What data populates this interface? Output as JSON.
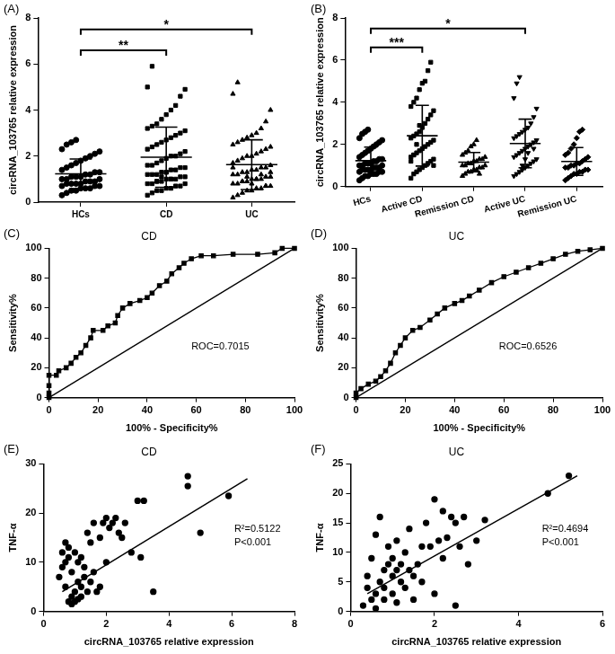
{
  "chart_data": [
    {
      "type": "dot_plot",
      "panel_label": "(A)",
      "y_label": "circRNA_103765 relative expression",
      "ylim": [
        0,
        8
      ],
      "yticks": [
        0,
        2,
        4,
        6,
        8
      ],
      "grid": false,
      "series": [
        {
          "name": "HCs",
          "color": "#000000",
          "marker": "circle",
          "values": [
            0.3,
            0.4,
            0.5,
            0.5,
            0.6,
            0.6,
            0.6,
            0.7,
            0.7,
            0.7,
            0.8,
            0.8,
            0.8,
            0.8,
            0.9,
            0.9,
            0.9,
            1.0,
            1.0,
            1.0,
            1.1,
            1.1,
            1.1,
            1.2,
            1.2,
            1.3,
            1.3,
            1.4,
            1.5,
            1.6,
            1.7,
            1.8,
            1.9,
            2.0,
            2.1,
            2.2,
            2.3,
            2.5,
            2.6,
            2.7
          ]
        },
        {
          "name": "CD",
          "color": "#000000",
          "marker": "square",
          "values": [
            0.3,
            0.4,
            0.5,
            0.5,
            0.6,
            0.6,
            0.7,
            0.7,
            0.8,
            0.8,
            0.8,
            0.9,
            0.9,
            1.0,
            1.0,
            1.0,
            1.1,
            1.1,
            1.2,
            1.2,
            1.2,
            1.3,
            1.3,
            1.4,
            1.4,
            1.5,
            1.5,
            1.6,
            1.6,
            1.7,
            1.8,
            1.9,
            2.0,
            2.0,
            2.1,
            2.2,
            2.3,
            2.4,
            2.5,
            2.6,
            2.7,
            2.8,
            2.9,
            3.0,
            3.1,
            3.2,
            3.3,
            3.4,
            3.6,
            3.8,
            4.0,
            4.2,
            4.6,
            4.9,
            5.0,
            5.9,
            0.9,
            1.1,
            1.3,
            1.0
          ]
        },
        {
          "name": "UC",
          "color": "#000000",
          "marker": "triangle",
          "values": [
            0.2,
            0.3,
            0.4,
            0.5,
            0.5,
            0.6,
            0.6,
            0.7,
            0.7,
            0.8,
            0.8,
            0.9,
            0.9,
            1.0,
            1.0,
            1.0,
            1.1,
            1.1,
            1.2,
            1.2,
            1.3,
            1.3,
            1.4,
            1.4,
            1.5,
            1.5,
            1.6,
            1.7,
            1.8,
            1.9,
            2.0,
            2.0,
            2.1,
            2.2,
            2.3,
            2.4,
            2.5,
            2.6,
            2.7,
            2.8,
            2.9,
            3.0,
            3.2,
            3.5,
            4.0,
            4.7,
            5.2,
            0.9,
            1.1,
            0.8,
            1.0,
            1.2,
            0.7,
            1.3,
            1.5
          ]
        }
      ],
      "significance": [
        {
          "from": "HCs",
          "to": "UC",
          "label": "*",
          "y": 7.5
        },
        {
          "from": "HCs",
          "to": "CD",
          "label": "**",
          "y": 6.6
        }
      ]
    },
    {
      "type": "dot_plot",
      "panel_label": "(B)",
      "y_label": "circRNA_103765 relative expression",
      "ylim": [
        0,
        8
      ],
      "yticks": [
        0,
        2,
        4,
        6,
        8
      ],
      "grid": false,
      "series": [
        {
          "name": "HCs",
          "color": "#000000",
          "marker": "circle",
          "values": [
            0.3,
            0.4,
            0.5,
            0.5,
            0.6,
            0.6,
            0.6,
            0.7,
            0.7,
            0.7,
            0.8,
            0.8,
            0.8,
            0.8,
            0.9,
            0.9,
            0.9,
            1.0,
            1.0,
            1.0,
            1.1,
            1.1,
            1.1,
            1.2,
            1.2,
            1.3,
            1.3,
            1.4,
            1.5,
            1.6,
            1.7,
            1.8,
            1.9,
            2.0,
            2.1,
            2.2,
            2.3,
            2.5,
            2.6,
            2.7
          ]
        },
        {
          "name": "Active CD",
          "color": "#000000",
          "marker": "square",
          "values": [
            0.4,
            0.6,
            0.7,
            0.8,
            0.9,
            1.0,
            1.1,
            1.2,
            1.3,
            1.4,
            1.5,
            1.6,
            1.7,
            1.8,
            1.9,
            2.0,
            2.1,
            2.2,
            2.3,
            2.4,
            2.5,
            2.6,
            2.8,
            3.0,
            3.2,
            3.4,
            3.6,
            3.8,
            4.0,
            4.2,
            4.6,
            4.9,
            5.0,
            5.5,
            5.9,
            1.0,
            1.2,
            1.5,
            2.0,
            2.9
          ]
        },
        {
          "name": "Remission CD",
          "color": "#000000",
          "marker": "triangle",
          "values": [
            0.5,
            0.6,
            0.7,
            0.7,
            0.8,
            0.8,
            0.9,
            0.9,
            1.0,
            1.0,
            1.0,
            1.1,
            1.1,
            1.2,
            1.2,
            1.3,
            1.3,
            1.4,
            1.5,
            1.6,
            1.7,
            1.9,
            2.0,
            2.2,
            0.6
          ]
        },
        {
          "name": "Active UC",
          "color": "#000000",
          "marker": "triangle_down",
          "values": [
            0.5,
            0.6,
            0.7,
            0.8,
            0.9,
            1.0,
            1.1,
            1.2,
            1.3,
            1.4,
            1.5,
            1.6,
            1.7,
            1.8,
            1.9,
            2.0,
            2.1,
            2.2,
            2.3,
            2.4,
            2.5,
            2.6,
            2.7,
            2.8,
            3.0,
            3.3,
            3.7,
            4.2,
            4.9,
            5.2,
            1.0,
            1.3,
            1.6,
            2.0,
            1.8
          ]
        },
        {
          "name": "Remission UC",
          "color": "#000000",
          "marker": "diamond",
          "values": [
            0.3,
            0.4,
            0.5,
            0.6,
            0.6,
            0.7,
            0.7,
            0.8,
            0.8,
            0.9,
            0.9,
            1.0,
            1.0,
            1.1,
            1.1,
            1.2,
            1.3,
            1.4,
            1.5,
            1.6,
            1.8,
            2.0,
            2.3,
            2.6,
            2.7
          ]
        }
      ],
      "significance": [
        {
          "from": "HCs",
          "to": "Active UC",
          "label": "*",
          "y": 7.5
        },
        {
          "from": "HCs",
          "to": "Active CD",
          "label": "***",
          "y": 6.6
        }
      ]
    },
    {
      "type": "line",
      "panel_label": "(C)",
      "title": "CD",
      "x_label": "100% - Specificity%",
      "y_label": "Sensitivity%",
      "xlim": [
        0,
        100
      ],
      "xticks": [
        0,
        20,
        40,
        60,
        80,
        100
      ],
      "ylim": [
        0,
        100
      ],
      "yticks": [
        0,
        20,
        40,
        60,
        80,
        100
      ],
      "grid": false,
      "series": [
        {
          "color": "#000000",
          "marker": "square",
          "line_style": "solid",
          "x": [
            0,
            0,
            0,
            0,
            3,
            4,
            7,
            9,
            11,
            13,
            15,
            17,
            18,
            22,
            24,
            27,
            28,
            30,
            33,
            37,
            40,
            42,
            45,
            48,
            50,
            53,
            55,
            58,
            62,
            67,
            75,
            85,
            92,
            95,
            100
          ],
          "y": [
            0,
            3,
            8,
            15,
            15,
            18,
            20,
            23,
            27,
            30,
            35,
            40,
            45,
            45,
            48,
            50,
            55,
            60,
            63,
            65,
            67,
            70,
            75,
            78,
            83,
            87,
            90,
            93,
            95,
            95,
            96,
            96,
            97,
            100,
            100
          ]
        },
        {
          "color": "#000000",
          "marker": "none",
          "line_style": "solid",
          "x": [
            0,
            100
          ],
          "y": [
            0,
            100
          ]
        }
      ],
      "annotations": [
        {
          "text": "ROC=0.7015"
        }
      ]
    },
    {
      "type": "line",
      "panel_label": "(D)",
      "title": "UC",
      "x_label": "100% - Specificity%",
      "y_label": "Sensitivity%",
      "xlim": [
        0,
        100
      ],
      "xticks": [
        0,
        20,
        40,
        60,
        80,
        100
      ],
      "ylim": [
        0,
        100
      ],
      "yticks": [
        0,
        20,
        40,
        60,
        80,
        100
      ],
      "grid": false,
      "series": [
        {
          "color": "#000000",
          "marker": "square",
          "line_style": "solid",
          "x": [
            0,
            0,
            2,
            5,
            8,
            10,
            12,
            14,
            16,
            18,
            20,
            23,
            26,
            30,
            33,
            36,
            40,
            43,
            46,
            50,
            55,
            60,
            65,
            70,
            75,
            80,
            85,
            90,
            95,
            100
          ],
          "y": [
            0,
            3,
            6,
            9,
            11,
            14,
            18,
            23,
            30,
            35,
            40,
            45,
            47,
            52,
            56,
            60,
            63,
            65,
            68,
            72,
            77,
            81,
            84,
            87,
            90,
            93,
            96,
            98,
            99,
            100
          ]
        },
        {
          "color": "#000000",
          "marker": "none",
          "line_style": "solid",
          "x": [
            0,
            100
          ],
          "y": [
            0,
            100
          ]
        }
      ],
      "annotations": [
        {
          "text": "ROC=0.6526"
        }
      ]
    },
    {
      "type": "scatter",
      "panel_label": "(E)",
      "title": "CD",
      "x_label": "circRNA_103765 relative expression",
      "y_label": "TNF-α",
      "xlim": [
        0,
        8
      ],
      "xticks": [
        0,
        2,
        4,
        6,
        8
      ],
      "ylim": [
        0,
        30
      ],
      "yticks": [
        0,
        10,
        20,
        30
      ],
      "grid": false,
      "series": [
        {
          "color": "#000000",
          "marker": "circle",
          "x": [
            0.5,
            0.6,
            0.6,
            0.7,
            0.7,
            0.8,
            0.8,
            0.8,
            0.9,
            0.9,
            0.9,
            1.0,
            1.0,
            1.0,
            1.1,
            1.1,
            1.1,
            1.2,
            1.2,
            1.3,
            1.3,
            1.4,
            1.4,
            1.5,
            1.6,
            1.6,
            1.7,
            1.8,
            1.8,
            1.9,
            2.0,
            2.0,
            2.1,
            2.2,
            2.3,
            2.4,
            2.5,
            2.6,
            2.8,
            3.0,
            3.1,
            3.2,
            3.5,
            4.6,
            4.6,
            5.0,
            5.9,
            1.2,
            1.5,
            0.7
          ],
          "y": [
            7,
            9,
            12,
            10,
            14,
            11,
            13,
            2,
            3,
            1.5,
            8,
            2,
            12,
            4,
            2.5,
            6,
            10,
            3,
            5,
            7,
            9,
            4,
            16,
            6,
            18,
            8,
            4,
            5,
            15,
            18,
            19,
            10,
            17,
            18,
            19,
            16,
            15,
            18,
            12,
            22.5,
            11,
            22.5,
            4,
            25.5,
            27.5,
            16,
            23.5,
            11,
            14,
            5
          ]
        }
      ],
      "fit_line": {
        "x": [
          0.6,
          6.5
        ],
        "y": [
          4,
          27
        ]
      },
      "annotations": [
        {
          "text": "R²=0.5122"
        },
        {
          "text": "P<0.001"
        }
      ]
    },
    {
      "type": "scatter",
      "panel_label": "(F)",
      "title": "UC",
      "x_label": "circRNA_103765 relative expression",
      "y_label": "TNF-α",
      "xlim": [
        0,
        6
      ],
      "xticks": [
        0,
        2,
        4,
        6
      ],
      "ylim": [
        0,
        25
      ],
      "yticks": [
        0,
        5,
        10,
        15,
        20,
        25
      ],
      "grid": false,
      "series": [
        {
          "color": "#000000",
          "marker": "circle",
          "x": [
            0.3,
            0.4,
            0.5,
            0.5,
            0.6,
            0.6,
            0.7,
            0.7,
            0.8,
            0.8,
            0.9,
            0.9,
            1.0,
            1.0,
            1.0,
            1.1,
            1.1,
            1.2,
            1.2,
            1.3,
            1.3,
            1.4,
            1.4,
            1.5,
            1.5,
            1.6,
            1.7,
            1.8,
            1.9,
            2.0,
            2.0,
            2.1,
            2.2,
            2.2,
            2.3,
            2.4,
            2.5,
            2.5,
            2.6,
            2.7,
            2.8,
            3.0,
            3.2,
            4.7,
            5.2,
            0.6,
            0.8,
            1.1,
            0.4,
            1.7
          ],
          "y": [
            1,
            4,
            2,
            9,
            3,
            13,
            5,
            16,
            7,
            2,
            8,
            11,
            3,
            6,
            9,
            7,
            12,
            5,
            8,
            4,
            10,
            7,
            14,
            6,
            2,
            8,
            5,
            15,
            11,
            19,
            3,
            12,
            17,
            9,
            12.5,
            16,
            15,
            1,
            11,
            16,
            8,
            12,
            15.5,
            20,
            23,
            0.5,
            4,
            1.5,
            6,
            11
          ]
        }
      ],
      "fit_line": {
        "x": [
          0.4,
          5.4
        ],
        "y": [
          3,
          23
        ]
      },
      "annotations": [
        {
          "text": "R²=0.4694"
        },
        {
          "text": "P<0.001"
        }
      ]
    }
  ]
}
